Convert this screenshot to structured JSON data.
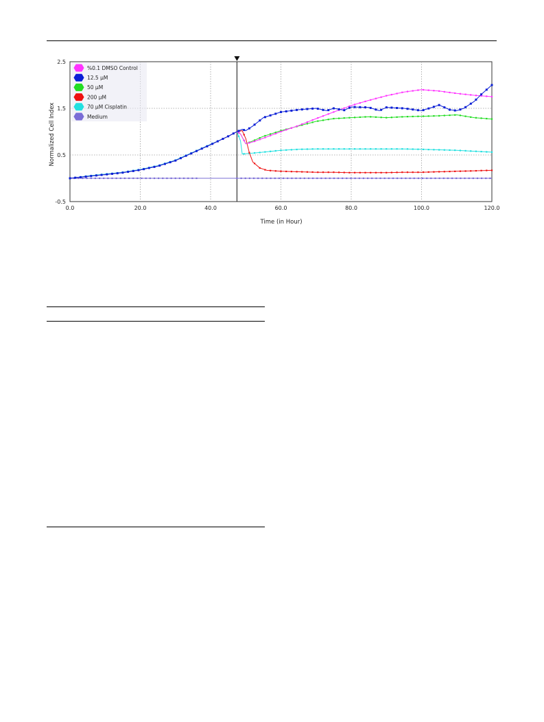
{
  "chart_data": {
    "type": "line",
    "xlabel": "Time (in Hour)",
    "ylabel": "Normalized Cell Index",
    "xlim": [
      0,
      120
    ],
    "ylim": [
      -0.5,
      2.5
    ],
    "xticks": [
      "0.0",
      "20.0",
      "40.0",
      "60.0",
      "80.0",
      "100.0",
      "120.0"
    ],
    "yticks": [
      "2.5",
      "1.5",
      "0.5",
      "-0.5"
    ],
    "legend_position": "top-left",
    "grid": true,
    "treatment_time": 47.5,
    "series": [
      {
        "name": "%0.1 DMSO Control",
        "color": "#ff33ff",
        "points": [
          [
            0,
            0.0
          ],
          [
            5,
            0.04
          ],
          [
            10,
            0.08
          ],
          [
            15,
            0.12
          ],
          [
            20,
            0.18
          ],
          [
            25,
            0.26
          ],
          [
            30,
            0.38
          ],
          [
            35,
            0.55
          ],
          [
            40,
            0.72
          ],
          [
            45,
            0.9
          ],
          [
            47.5,
            1.0
          ],
          [
            48.5,
            0.95
          ],
          [
            50,
            0.74
          ],
          [
            52,
            0.78
          ],
          [
            55,
            0.86
          ],
          [
            60,
            1.0
          ],
          [
            65,
            1.13
          ],
          [
            70,
            1.28
          ],
          [
            75,
            1.42
          ],
          [
            80,
            1.56
          ],
          [
            85,
            1.67
          ],
          [
            90,
            1.77
          ],
          [
            95,
            1.85
          ],
          [
            100,
            1.9
          ],
          [
            105,
            1.87
          ],
          [
            110,
            1.82
          ],
          [
            115,
            1.78
          ],
          [
            120,
            1.75
          ]
        ]
      },
      {
        "name": "12.5 µM",
        "color": "#0a1fd6",
        "points": [
          [
            0,
            0.0
          ],
          [
            5,
            0.04
          ],
          [
            10,
            0.08
          ],
          [
            15,
            0.12
          ],
          [
            20,
            0.18
          ],
          [
            25,
            0.26
          ],
          [
            30,
            0.38
          ],
          [
            35,
            0.55
          ],
          [
            40,
            0.72
          ],
          [
            45,
            0.9
          ],
          [
            47.5,
            1.0
          ],
          [
            49,
            1.05
          ],
          [
            50,
            1.02
          ],
          [
            52,
            1.12
          ],
          [
            55,
            1.3
          ],
          [
            60,
            1.42
          ],
          [
            65,
            1.47
          ],
          [
            70,
            1.5
          ],
          [
            73,
            1.45
          ],
          [
            75,
            1.5
          ],
          [
            78,
            1.46
          ],
          [
            80,
            1.53
          ],
          [
            85,
            1.52
          ],
          [
            88,
            1.45
          ],
          [
            90,
            1.52
          ],
          [
            95,
            1.5
          ],
          [
            100,
            1.45
          ],
          [
            103,
            1.52
          ],
          [
            105,
            1.57
          ],
          [
            108,
            1.47
          ],
          [
            110,
            1.45
          ],
          [
            112,
            1.5
          ],
          [
            115,
            1.65
          ],
          [
            117,
            1.8
          ],
          [
            120,
            2.0
          ]
        ]
      },
      {
        "name": "50 µM",
        "color": "#22dd22",
        "points": [
          [
            0,
            0.0
          ],
          [
            5,
            0.04
          ],
          [
            10,
            0.08
          ],
          [
            15,
            0.12
          ],
          [
            20,
            0.18
          ],
          [
            25,
            0.26
          ],
          [
            30,
            0.38
          ],
          [
            35,
            0.55
          ],
          [
            40,
            0.72
          ],
          [
            45,
            0.9
          ],
          [
            47.5,
            1.0
          ],
          [
            48.5,
            0.95
          ],
          [
            50,
            0.74
          ],
          [
            52,
            0.8
          ],
          [
            55,
            0.9
          ],
          [
            60,
            1.02
          ],
          [
            65,
            1.12
          ],
          [
            70,
            1.22
          ],
          [
            75,
            1.28
          ],
          [
            80,
            1.3
          ],
          [
            85,
            1.32
          ],
          [
            90,
            1.3
          ],
          [
            95,
            1.32
          ],
          [
            100,
            1.33
          ],
          [
            105,
            1.34
          ],
          [
            110,
            1.36
          ],
          [
            115,
            1.3
          ],
          [
            120,
            1.27
          ]
        ]
      },
      {
        "name": "200 µM",
        "color": "#ee1111",
        "points": [
          [
            0,
            0.0
          ],
          [
            5,
            0.04
          ],
          [
            10,
            0.08
          ],
          [
            15,
            0.12
          ],
          [
            20,
            0.18
          ],
          [
            25,
            0.26
          ],
          [
            30,
            0.38
          ],
          [
            35,
            0.55
          ],
          [
            40,
            0.72
          ],
          [
            45,
            0.9
          ],
          [
            47.5,
            1.0
          ],
          [
            49,
            1.02
          ],
          [
            50,
            0.85
          ],
          [
            51,
            0.55
          ],
          [
            52,
            0.35
          ],
          [
            54,
            0.22
          ],
          [
            56,
            0.17
          ],
          [
            60,
            0.15
          ],
          [
            65,
            0.14
          ],
          [
            70,
            0.13
          ],
          [
            75,
            0.13
          ],
          [
            80,
            0.12
          ],
          [
            85,
            0.12
          ],
          [
            90,
            0.12
          ],
          [
            95,
            0.13
          ],
          [
            100,
            0.13
          ],
          [
            105,
            0.14
          ],
          [
            110,
            0.15
          ],
          [
            115,
            0.16
          ],
          [
            120,
            0.17
          ]
        ]
      },
      {
        "name": "70 µM Cisplatin",
        "color": "#22e0e0",
        "points": [
          [
            0,
            0.0
          ],
          [
            5,
            0.05
          ],
          [
            10,
            0.09
          ],
          [
            15,
            0.13
          ],
          [
            20,
            0.19
          ],
          [
            25,
            0.27
          ],
          [
            30,
            0.39
          ],
          [
            35,
            0.56
          ],
          [
            40,
            0.73
          ],
          [
            45,
            0.9
          ],
          [
            47.5,
            1.0
          ],
          [
            48.5,
            0.8
          ],
          [
            49,
            0.52
          ],
          [
            55,
            0.56
          ],
          [
            60,
            0.6
          ],
          [
            65,
            0.62
          ],
          [
            70,
            0.63
          ],
          [
            75,
            0.63
          ],
          [
            80,
            0.63
          ],
          [
            85,
            0.63
          ],
          [
            90,
            0.63
          ],
          [
            95,
            0.63
          ],
          [
            100,
            0.62
          ],
          [
            105,
            0.61
          ],
          [
            110,
            0.6
          ],
          [
            115,
            0.58
          ],
          [
            120,
            0.56
          ]
        ]
      },
      {
        "name": "Medium",
        "color": "#7a6cd6",
        "segments": [
          [
            0,
            36.5
          ],
          [
            47.5,
            120
          ]
        ],
        "points": [
          [
            0,
            0.0
          ],
          [
            120,
            0.0
          ]
        ]
      }
    ]
  }
}
